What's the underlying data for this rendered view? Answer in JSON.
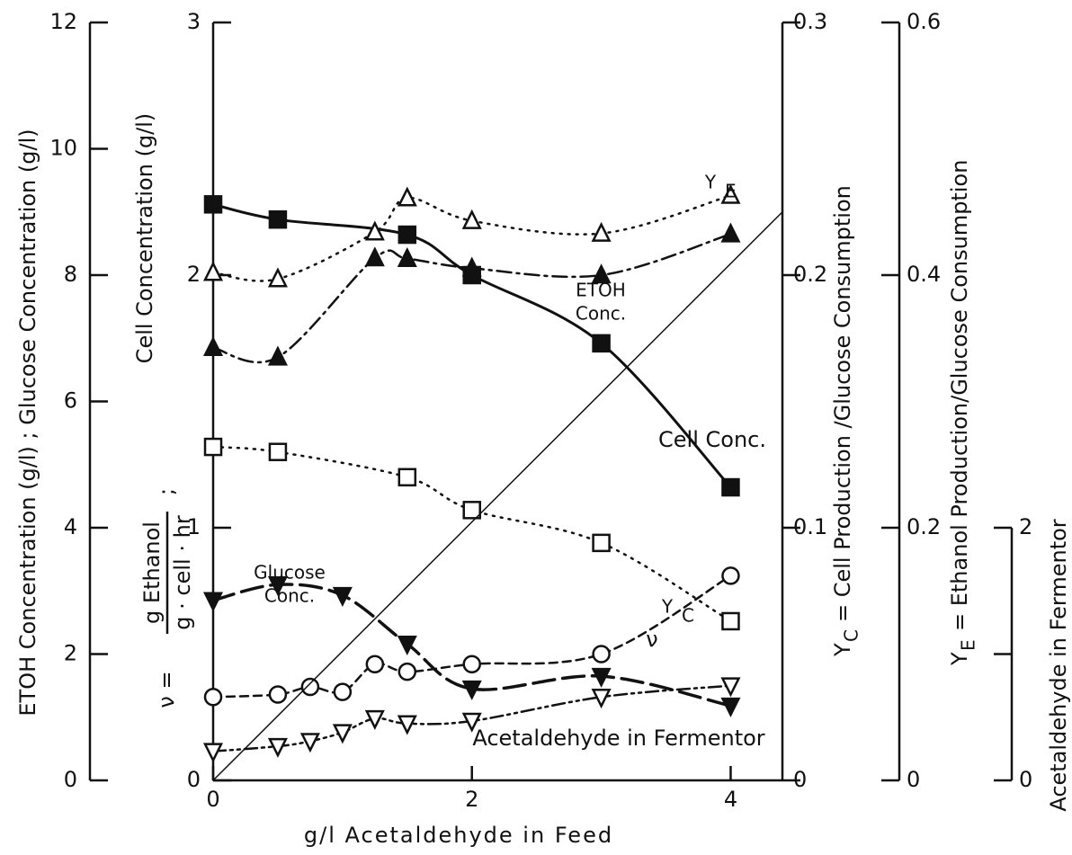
{
  "chart_data": {
    "type": "line",
    "x_label": "g/l Acetaldehyde in Feed",
    "xlim": [
      0,
      4.4
    ],
    "xticks": [
      0,
      2,
      4
    ],
    "axes": [
      {
        "label": "ETOH Concentration (g/l) ;  Glucose Concentration (g/l)",
        "lim": [
          0,
          12
        ],
        "ticks": [
          0,
          2,
          4,
          6,
          8,
          10,
          12
        ]
      },
      {
        "label": "Cell Concentration (g/l)",
        "label_nu": [
          "ν =",
          "g Ethanol",
          "g · cell · hr",
          ";"
        ],
        "lim": [
          0,
          3
        ],
        "ticks": [
          0,
          1,
          2,
          3
        ]
      },
      {
        "label_symbol": "Y",
        "label_sub": "C",
        "label": "= Cell Production /Glucose Consumption",
        "lim": [
          0,
          0.3
        ],
        "ticks": [
          0,
          0.1,
          0.2,
          0.3
        ]
      },
      {
        "label_symbol": "Y",
        "label_sub": "E",
        "label": "= Ethanol Production/Glucose Consumption",
        "lim": [
          0,
          0.6
        ],
        "ticks": [
          0,
          0.2,
          0.4,
          0.6
        ]
      },
      {
        "label": "Acetaldehyde in Fermentor",
        "lim": [
          0,
          6
        ],
        "ticks": [
          0,
          2
        ],
        "minor_ticks": [
          1
        ]
      }
    ],
    "series": [
      {
        "label": [
          "Cell Conc."
        ],
        "axis": 1,
        "marker": "square-filled",
        "dash": "solid",
        "color": "#111",
        "x": [
          0,
          0.5,
          1.5,
          2,
          3,
          4
        ],
        "values": [
          2.28,
          2.22,
          2.16,
          2.0,
          1.73,
          1.16
        ]
      },
      {
        "label": [
          "ETOH",
          "Conc."
        ],
        "axis": 0,
        "marker": "triangle-filled",
        "dash": "dashdot",
        "color": "#111",
        "x": [
          0,
          0.5,
          1.25,
          1.5,
          2,
          3,
          4
        ],
        "values": [
          6.85,
          6.7,
          8.27,
          8.26,
          8.11,
          8.0,
          8.65
        ]
      },
      {
        "label": [
          "Y",
          "E"
        ],
        "axis": 3,
        "marker": "triangle-open",
        "dash": "dotted",
        "color": "#111",
        "x": [
          0,
          0.5,
          1.25,
          1.5,
          2,
          3,
          4
        ],
        "values": [
          0.402,
          0.397,
          0.434,
          0.461,
          0.443,
          0.433,
          0.463
        ]
      },
      {
        "label": [
          "Y",
          "C"
        ],
        "axis": 2,
        "marker": "square-open",
        "dash": "dotted",
        "color": "#111",
        "x": [
          0,
          0.5,
          1.5,
          2,
          3,
          4
        ],
        "values": [
          0.132,
          0.13,
          0.12,
          0.107,
          0.094,
          0.063
        ]
      },
      {
        "label": [
          "Glucose",
          "Conc."
        ],
        "axis": 0,
        "marker": "invtriangle-filled",
        "dash": "longdash",
        "color": "#111",
        "x": [
          0,
          0.5,
          1,
          1.5,
          2,
          3,
          4
        ],
        "values": [
          2.85,
          3.1,
          2.93,
          2.16,
          1.45,
          1.65,
          1.18
        ]
      },
      {
        "label": [
          "ν"
        ],
        "axis": 1,
        "marker": "circle-open",
        "dash": "dashed",
        "color": "#111",
        "x": [
          0,
          0.5,
          0.75,
          1,
          1.25,
          1.5,
          2,
          3,
          4
        ],
        "values": [
          0.33,
          0.34,
          0.37,
          0.35,
          0.46,
          0.43,
          0.46,
          0.5,
          0.81
        ]
      },
      {
        "label": [
          "Acetaldehyde in Fermentor"
        ],
        "axis": 4,
        "marker": "invtriangle-open",
        "dash": "dashdotdot",
        "color": "#111",
        "x": [
          0,
          0.5,
          0.75,
          1,
          1.25,
          1.5,
          2,
          3,
          4
        ],
        "values": [
          0.23,
          0.27,
          0.31,
          0.38,
          0.49,
          0.45,
          0.47,
          0.66,
          0.75
        ]
      },
      {
        "axis": 4,
        "marker": "none",
        "dash": "thin",
        "color": "#111",
        "x": [
          0,
          4.4
        ],
        "values": [
          0,
          4.5
        ]
      }
    ]
  }
}
